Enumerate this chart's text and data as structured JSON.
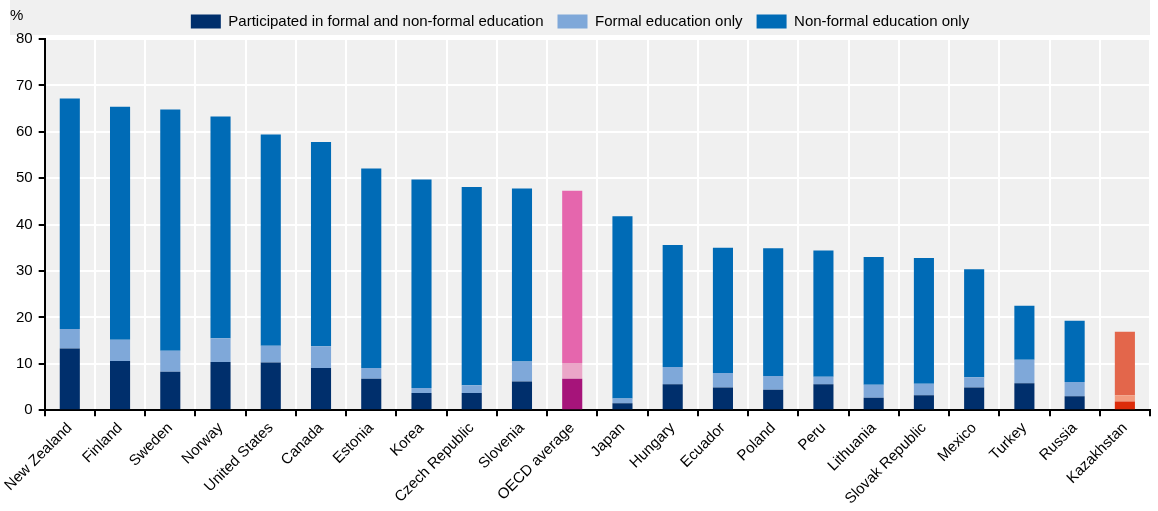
{
  "chart_data": {
    "type": "bar",
    "stacked": true,
    "ylabel": "%",
    "categories": [
      "New Zealand",
      "Finland",
      "Sweden",
      "Norway",
      "United States",
      "Canada",
      "Estonia",
      "Korea",
      "Czech Republic",
      "Slovenia",
      "OECD average",
      "Japan",
      "Hungary",
      "Ecuador",
      "Poland",
      "Peru",
      "Lithuania",
      "Slovak Republic",
      "Mexico",
      "Turkey",
      "Russia",
      "Kazakhstan"
    ],
    "series": [
      {
        "name": "Participated in formal and non-formal education",
        "color": "#002f6c",
        "colors": [
          "#002f6c",
          "#002f6c",
          "#002f6c",
          "#002f6c",
          "#002f6c",
          "#002f6c",
          "#002f6c",
          "#002f6c",
          "#002f6c",
          "#002f6c",
          "#a6147a",
          "#002f6c",
          "#002f6c",
          "#002f6c",
          "#002f6c",
          "#002f6c",
          "#002f6c",
          "#002f6c",
          "#002f6c",
          "#002f6c",
          "#002f6c",
          "#dd2c0a"
        ],
        "values": [
          13.3,
          10.6,
          8.3,
          10.4,
          10.3,
          9.1,
          6.8,
          3.7,
          3.7,
          6.2,
          6.8,
          1.5,
          5.6,
          4.9,
          4.4,
          5.6,
          2.7,
          3.2,
          4.9,
          5.8,
          3.0,
          1.9
        ]
      },
      {
        "name": "Formal education only",
        "color": "#7fa8d9",
        "colors": [
          "#7fa8d9",
          "#7fa8d9",
          "#7fa8d9",
          "#7fa8d9",
          "#7fa8d9",
          "#7fa8d9",
          "#7fa8d9",
          "#7fa8d9",
          "#7fa8d9",
          "#7fa8d9",
          "#eba6c8",
          "#7fa8d9",
          "#7fa8d9",
          "#7fa8d9",
          "#7fa8d9",
          "#7fa8d9",
          "#7fa8d9",
          "#7fa8d9",
          "#7fa8d9",
          "#7fa8d9",
          "#7fa8d9",
          "#f39c7f"
        ],
        "values": [
          4.2,
          4.6,
          4.5,
          5.1,
          3.6,
          4.7,
          2.3,
          1.1,
          1.7,
          4.3,
          3.4,
          1.0,
          3.7,
          3.1,
          3.0,
          1.6,
          2.8,
          2.5,
          2.2,
          5.1,
          3.1,
          1.3
        ]
      },
      {
        "name": "Non-formal education only",
        "color": "#006bb6",
        "colors": [
          "#006bb6",
          "#006bb6",
          "#006bb6",
          "#006bb6",
          "#006bb6",
          "#006bb6",
          "#006bb6",
          "#006bb6",
          "#006bb6",
          "#006bb6",
          "#e566ad",
          "#006bb6",
          "#006bb6",
          "#006bb6",
          "#006bb6",
          "#006bb6",
          "#006bb6",
          "#006bb6",
          "#006bb6",
          "#006bb6",
          "#006bb6",
          "#e3664b"
        ],
        "values": [
          49.7,
          50.2,
          52.0,
          47.8,
          45.5,
          44.0,
          43.0,
          44.9,
          42.7,
          37.3,
          37.1,
          39.3,
          26.3,
          27.0,
          27.5,
          27.2,
          27.5,
          27.1,
          23.3,
          11.6,
          13.2,
          13.7
        ]
      }
    ],
    "ylim": [
      0,
      80
    ],
    "yticks": [
      0,
      10,
      20,
      30,
      40,
      50,
      60,
      70,
      80
    ],
    "grid": true,
    "legend": "top"
  }
}
